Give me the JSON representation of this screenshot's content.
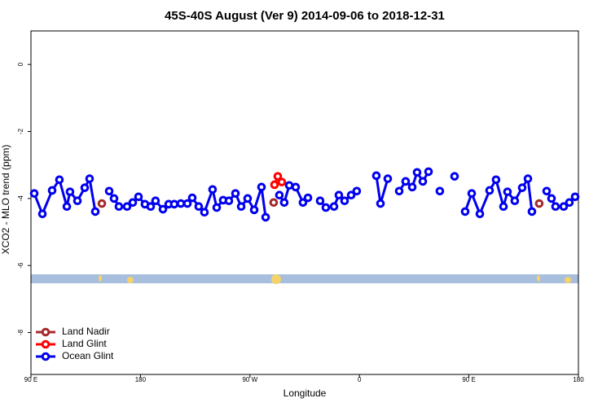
{
  "chart_data": {
    "type": "line",
    "title": "45S-40S August (Ver 9)   2014-09-06 to 2018-12-31",
    "x_label": "Longitude",
    "y_label": "XCO2 - MLO trend (ppm)",
    "xlim": [
      90,
      540
    ],
    "xticks": [
      {
        "value": 90,
        "label": "90 E"
      },
      180,
      {
        "value": 270,
        "label": "90 W"
      },
      {
        "value": 360,
        "label": "0"
      },
      {
        "value": 450,
        "label": "90 E"
      },
      {
        "value": 540,
        "label": "180"
      }
    ],
    "ylim": [
      -9.25,
      1.0
    ],
    "yticks": [
      0,
      -2,
      -4,
      -6,
      -8
    ],
    "legend": "bottom-left",
    "series": [
      {
        "name": "Land Nadir",
        "color": "#a52a2a",
        "x": [
          148.3,
          null,
          289.5,
          null,
          507.8
        ],
        "values": [
          -4.15,
          null,
          -4.12,
          null,
          -4.15
        ]
      },
      {
        "name": "Land Glint",
        "color": "#ff0000",
        "x": [
          290.2,
          292.9,
          296.2
        ],
        "values": [
          -3.59,
          -3.34,
          -3.51
        ]
      },
      {
        "name": "Ocean Glint",
        "color": "#0000ee",
        "x": [
          92.7,
          99.4,
          107.4,
          113.4,
          119.5,
          122.1,
          128.2,
          134.2,
          138.2,
          142.9,
          null,
          154.3,
          158.3,
          162.3,
          169.0,
          173.7,
          178.4,
          183.7,
          188.4,
          192.4,
          198.5,
          203.2,
          207.8,
          213.2,
          218.6,
          222.6,
          227.9,
          232.6,
          239.3,
          242.7,
          248.0,
          252.7,
          258.1,
          262.8,
          268.1,
          273.5,
          279.5,
          282.9,
          null,
          294.2,
          298.2,
          302.3,
          307.6,
          313.6,
          317.7,
          null,
          327.7,
          332.4,
          339.1,
          343.1,
          347.8,
          353.2,
          357.8,
          null,
          373.9,
          377.3,
          383.3,
          null,
          392.7,
          398.0,
          403.4,
          407.4,
          412.1,
          416.8,
          null,
          426.1,
          null,
          438.2,
          null,
          446.9,
          452.3,
          459.0,
          467.0,
          472.3,
          478.4,
          481.7,
          487.7,
          493.8,
          498.5,
          501.8,
          null,
          513.9,
          517.9,
          521.2,
          527.9,
          532.6,
          537.3
        ],
        "values": [
          -3.85,
          -4.46,
          -3.76,
          -3.44,
          -4.24,
          -3.8,
          -4.07,
          -3.68,
          -3.41,
          -4.39,
          null,
          -3.78,
          -4.0,
          -4.24,
          -4.24,
          -4.12,
          -3.95,
          -4.17,
          -4.24,
          -4.07,
          -4.32,
          -4.17,
          -4.17,
          -4.15,
          -4.15,
          -3.98,
          -4.24,
          -4.41,
          -3.73,
          -4.27,
          -4.05,
          -4.07,
          -3.85,
          -4.24,
          -4.0,
          -4.34,
          -3.66,
          -4.56,
          null,
          -3.9,
          -4.12,
          -3.61,
          -3.66,
          -4.12,
          -3.98,
          null,
          -4.07,
          -4.27,
          -4.24,
          -3.9,
          -4.07,
          -3.9,
          -3.78,
          null,
          -3.32,
          -4.15,
          -3.41,
          null,
          -3.78,
          -3.49,
          -3.66,
          -3.22,
          -3.49,
          -3.2,
          null,
          -3.78,
          null,
          -3.34,
          null,
          -4.39,
          -3.85,
          -4.46,
          -3.76,
          -3.44,
          -4.24,
          -3.8,
          -4.07,
          -3.68,
          -3.41,
          -4.39,
          null,
          -3.78,
          -4.0,
          -4.24,
          -4.24,
          -4.12,
          -3.95
        ]
      }
    ]
  }
}
